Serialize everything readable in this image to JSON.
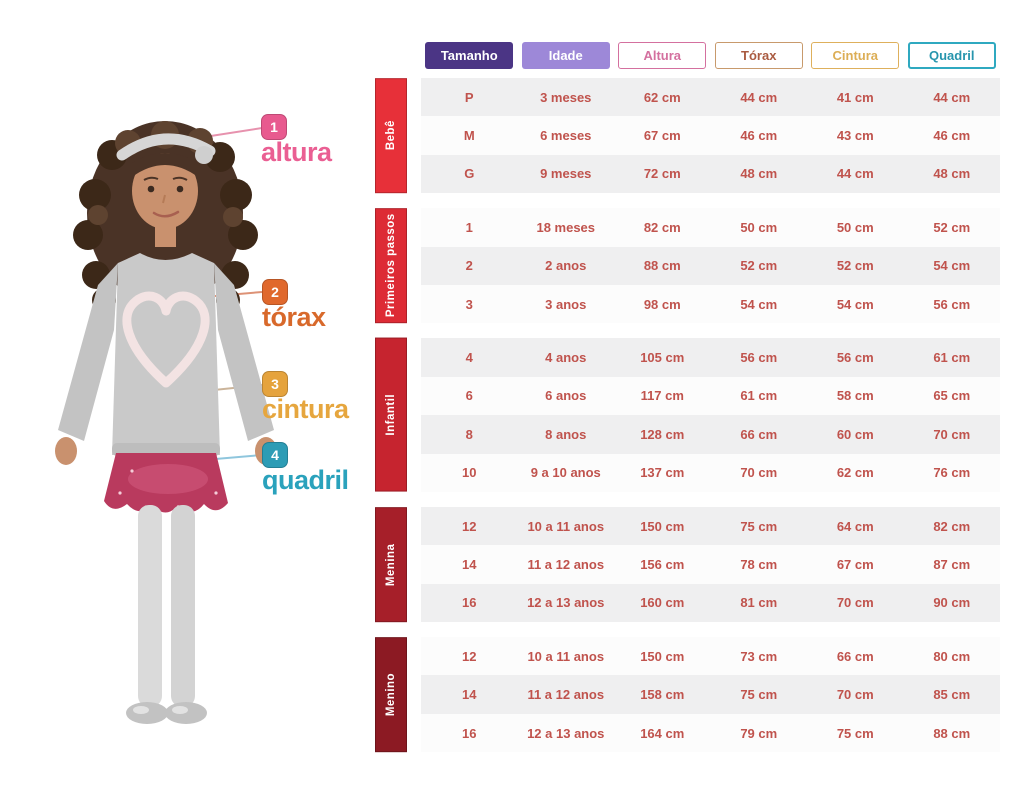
{
  "figure": {
    "description": "girl-model-photo",
    "callouts": [
      {
        "num": "1",
        "label": "altura",
        "badge_color": "#e85a8f",
        "text_color": "#ea5f93",
        "line_color": "#e792ae"
      },
      {
        "num": "2",
        "label": "tórax",
        "badge_color": "#e0682c",
        "text_color": "#d8692b",
        "line_color": "#dd9276"
      },
      {
        "num": "3",
        "label": "cintura",
        "badge_color": "#e5a33d",
        "text_color": "#e6a63e",
        "line_color": "#cbb49a"
      },
      {
        "num": "4",
        "label": "quadril",
        "badge_color": "#2d9cb5",
        "text_color": "#2aa2bc",
        "line_color": "#8fc6dd"
      }
    ]
  },
  "chart_data": {
    "type": "table",
    "columns": [
      "Tamanho",
      "Idade",
      "Altura",
      "Tórax",
      "Cintura",
      "Quadril"
    ],
    "sections": [
      {
        "name": "Bebê",
        "color": "#e73039",
        "rows": [
          [
            "P",
            "3 meses",
            "62 cm",
            "44 cm",
            "41 cm",
            "44 cm"
          ],
          [
            "M",
            "6 meses",
            "67 cm",
            "46 cm",
            "43 cm",
            "46 cm"
          ],
          [
            "G",
            "9 meses",
            "72 cm",
            "48 cm",
            "44 cm",
            "48 cm"
          ]
        ]
      },
      {
        "name": "Primeiros passos",
        "color": "#dd2b35",
        "rows": [
          [
            "1",
            "18 meses",
            "82 cm",
            "50 cm",
            "50 cm",
            "52 cm"
          ],
          [
            "2",
            "2 anos",
            "88 cm",
            "52 cm",
            "52 cm",
            "54 cm"
          ],
          [
            "3",
            "3 anos",
            "98 cm",
            "54 cm",
            "54 cm",
            "56 cm"
          ]
        ]
      },
      {
        "name": "Infantil",
        "color": "#c6242f",
        "rows": [
          [
            "4",
            "4 anos",
            "105 cm",
            "56 cm",
            "56 cm",
            "61 cm"
          ],
          [
            "6",
            "6 anos",
            "117 cm",
            "61 cm",
            "58 cm",
            "65 cm"
          ],
          [
            "8",
            "8 anos",
            "128 cm",
            "66 cm",
            "60 cm",
            "70 cm"
          ],
          [
            "10",
            "9 a 10 anos",
            "137 cm",
            "70 cm",
            "62 cm",
            "76 cm"
          ]
        ]
      },
      {
        "name": "Menina",
        "color": "#a61f29",
        "rows": [
          [
            "12",
            "10 a 11 anos",
            "150 cm",
            "75 cm",
            "64 cm",
            "82 cm"
          ],
          [
            "14",
            "11 a 12 anos",
            "156 cm",
            "78 cm",
            "67 cm",
            "87 cm"
          ],
          [
            "16",
            "12 a 13 anos",
            "160 cm",
            "81 cm",
            "70 cm",
            "90 cm"
          ]
        ]
      },
      {
        "name": "Menino",
        "color": "#8c1a23",
        "rows": [
          [
            "12",
            "10 a 11 anos",
            "150 cm",
            "73 cm",
            "66 cm",
            "80 cm"
          ],
          [
            "14",
            "11 a 12 anos",
            "158 cm",
            "75 cm",
            "70 cm",
            "85 cm"
          ],
          [
            "16",
            "12 a 13 anos",
            "164 cm",
            "79 cm",
            "75 cm",
            "88 cm"
          ]
        ]
      }
    ]
  },
  "styles": {
    "headers": [
      {
        "key": "tamanho",
        "bg": "#4b3585",
        "color": "#ffffff"
      },
      {
        "key": "idade",
        "bg": "#9d88d8",
        "color": "#ffffff"
      },
      {
        "key": "altura",
        "border": "#d4709f",
        "border_width": 1,
        "color": "#d4709f"
      },
      {
        "key": "torax",
        "border": "#c89a6c",
        "border_width": 1,
        "color": "#aa5b41"
      },
      {
        "key": "cintura",
        "border": "#deb05c",
        "border_width": 1,
        "color": "#dcae56"
      },
      {
        "key": "quadril",
        "border": "#2fa9c0",
        "border_width": 2,
        "color": "#2795ad"
      }
    ],
    "rows": {
      "odd": "#efeff0",
      "even": "#fcfcfc",
      "text": "#c0534d"
    }
  }
}
